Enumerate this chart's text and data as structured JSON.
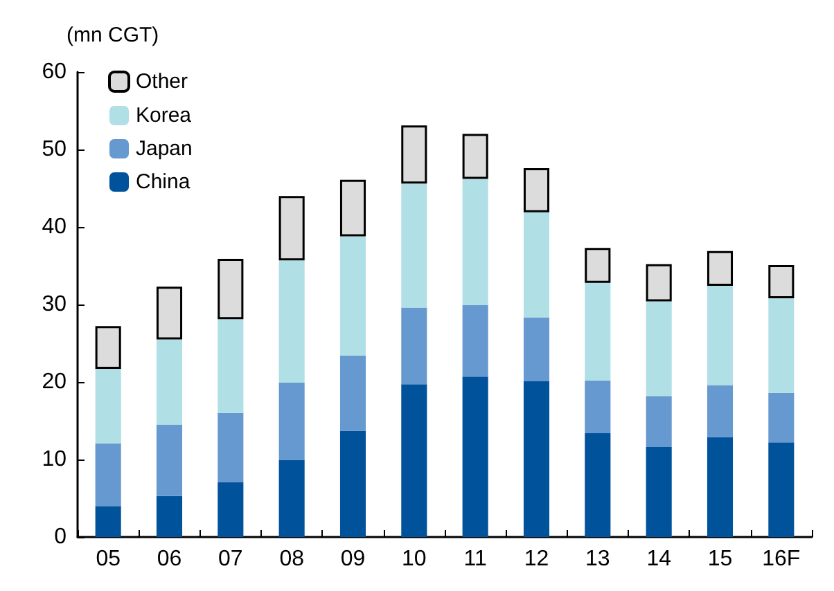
{
  "chart_data": {
    "type": "bar",
    "stacked": true,
    "ylabel": "(mn CGT)",
    "categories": [
      "05",
      "06",
      "07",
      "08",
      "09",
      "10",
      "11",
      "12",
      "13",
      "14",
      "15",
      "16F"
    ],
    "series": [
      {
        "name": "China",
        "color": "#00529b",
        "values": [
          4.0,
          5.3,
          7.1,
          9.9,
          13.7,
          19.7,
          20.7,
          20.1,
          13.4,
          11.6,
          12.9,
          12.2
        ]
      },
      {
        "name": "Japan",
        "color": "#6699d0",
        "values": [
          8.1,
          9.2,
          8.9,
          10.0,
          9.7,
          9.9,
          9.2,
          8.2,
          6.8,
          6.6,
          6.7,
          6.4
        ]
      },
      {
        "name": "Korea",
        "color": "#b0dfe5",
        "values": [
          9.6,
          11.0,
          12.1,
          15.8,
          15.4,
          16.0,
          16.3,
          13.6,
          12.6,
          12.2,
          12.8,
          12.2
        ]
      },
      {
        "name": "Other",
        "color": "#dcdcdc",
        "values": [
          5.5,
          6.8,
          7.8,
          8.3,
          7.3,
          7.5,
          5.8,
          5.7,
          4.5,
          4.8,
          4.5,
          4.3
        ]
      }
    ],
    "ylim": [
      0,
      60
    ],
    "yticks": [
      0,
      10,
      20,
      30,
      40,
      50,
      60
    ],
    "grid": false,
    "legend": "top left"
  }
}
